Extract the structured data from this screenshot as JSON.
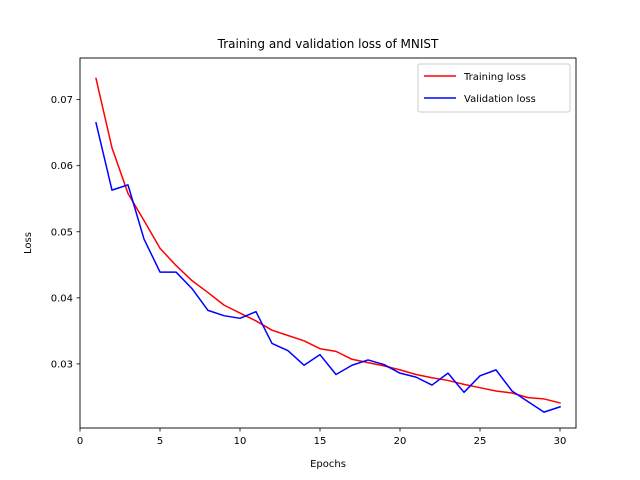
{
  "chart_data": {
    "type": "line",
    "title": "Training and validation loss of MNIST",
    "xlabel": "Epochs",
    "ylabel": "Loss",
    "xlim": [
      0.0,
      31.0
    ],
    "ylim": [
      0.0203,
      0.0763
    ],
    "xticks": [
      0,
      5,
      10,
      15,
      20,
      25,
      30
    ],
    "yticks": [
      0.03,
      0.04,
      0.05,
      0.06,
      0.07
    ],
    "xtick_labels": [
      "0",
      "5",
      "10",
      "15",
      "20",
      "25",
      "30"
    ],
    "ytick_labels": [
      "0.03",
      "0.04",
      "0.05",
      "0.06",
      "0.07"
    ],
    "grid": false,
    "legend_position": "top-right",
    "x": [
      1,
      2,
      3,
      4,
      5,
      6,
      7,
      8,
      9,
      10,
      11,
      12,
      13,
      14,
      15,
      16,
      17,
      18,
      19,
      20,
      21,
      22,
      23,
      24,
      25,
      26,
      27,
      28,
      29,
      30
    ],
    "series": [
      {
        "name": "Training loss",
        "color": "#ff0000",
        "values": [
          0.0732,
          0.0627,
          0.0558,
          0.0517,
          0.0475,
          0.0449,
          0.0426,
          0.0408,
          0.0389,
          0.0377,
          0.0365,
          0.0351,
          0.0343,
          0.0335,
          0.0323,
          0.0319,
          0.0307,
          0.0302,
          0.0297,
          0.0291,
          0.0284,
          0.0279,
          0.0275,
          0.0269,
          0.0264,
          0.0259,
          0.0256,
          0.0249,
          0.0247,
          0.0241
        ]
      },
      {
        "name": "Validation loss",
        "color": "#0000ff",
        "values": [
          0.0665,
          0.0563,
          0.0571,
          0.0489,
          0.0439,
          0.0439,
          0.0414,
          0.0381,
          0.0373,
          0.0369,
          0.0379,
          0.0331,
          0.032,
          0.0298,
          0.0314,
          0.0284,
          0.0298,
          0.0306,
          0.0299,
          0.0286,
          0.028,
          0.0268,
          0.0286,
          0.0257,
          0.0282,
          0.0291,
          0.0259,
          0.0243,
          0.0227,
          0.0235
        ]
      }
    ]
  }
}
